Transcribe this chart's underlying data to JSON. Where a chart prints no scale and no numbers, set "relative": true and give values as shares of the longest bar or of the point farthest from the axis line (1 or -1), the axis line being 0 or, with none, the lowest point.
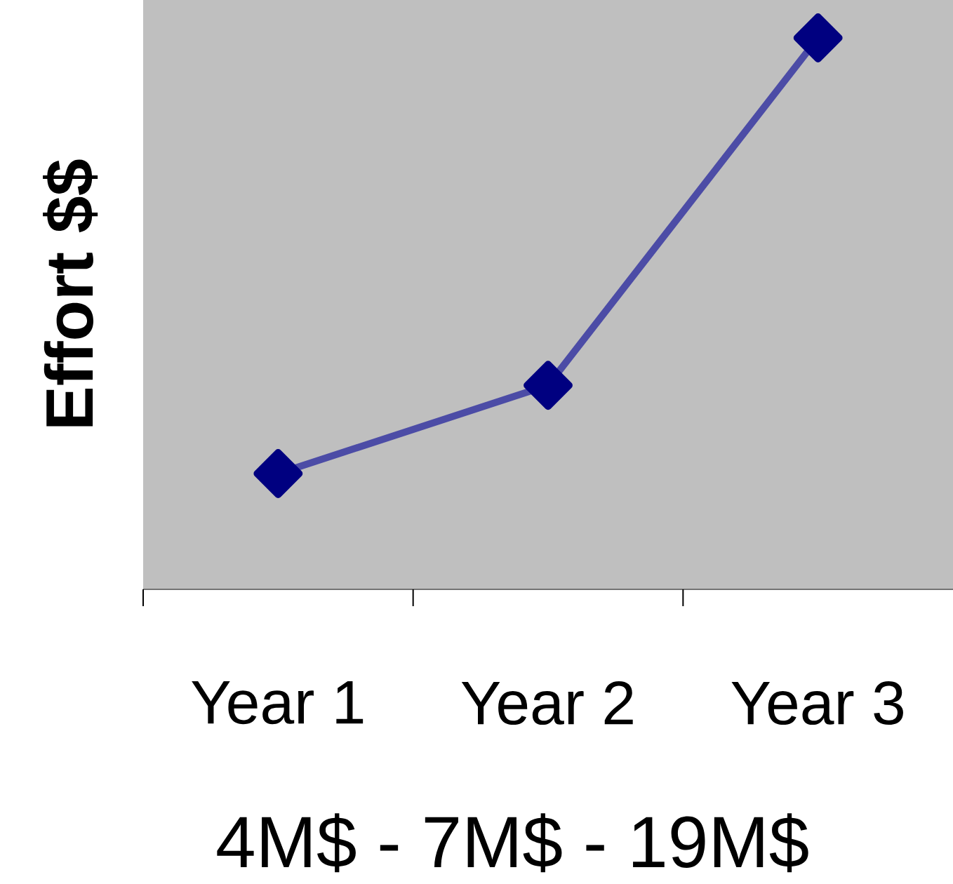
{
  "chart_data": {
    "type": "line",
    "relative": true,
    "ylabel": "Effort  $$",
    "xlabel": "4M$ - 7M$ - 19M$",
    "categories": [
      "Year 1",
      "Year 2",
      "Year 3"
    ],
    "series": [
      {
        "color": "#000080",
        "values": [
          0.21,
          0.37,
          1
        ]
      }
    ],
    "marker": "diamond",
    "line_style": "solid",
    "grid": false
  }
}
